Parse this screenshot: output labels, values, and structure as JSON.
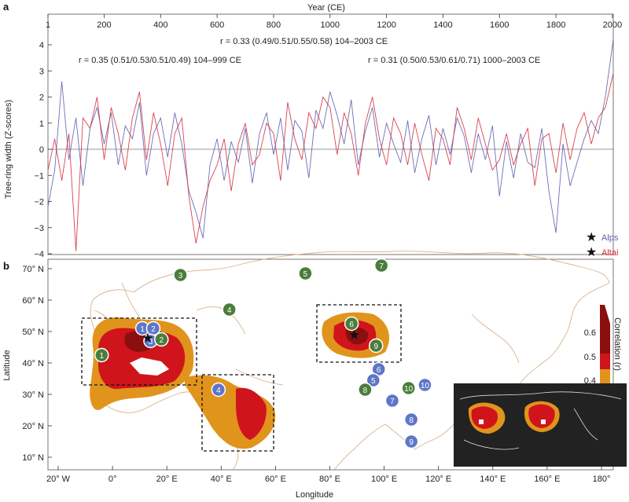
{
  "panel_a": {
    "label": "a",
    "x_axis_title": "Year (CE)",
    "y_axis_title": "Tree-ring width (Z-scores)",
    "correlation_notes": [
      "r = 0.33 (0.49/0.51/0.55/0.58) 104–2003 CE",
      "r = 0.35 (0.51/0.53/0.51/0.49) 104–999 CE",
      "r = 0.31 (0.50/0.53/0.61/0.71) 1000–2003 CE"
    ],
    "legend": [
      {
        "label": "Alps",
        "color": "#5b5fb0"
      },
      {
        "label": "Altai",
        "color": "#d62e3c"
      }
    ]
  },
  "panel_b": {
    "label": "b",
    "x_axis_title": "Longitude",
    "y_axis_title": "Latitude",
    "colorbar_title": "Correlation (r)",
    "colorbar_ticks": [
      "0.6",
      "0.5",
      "0.4"
    ],
    "colorbar_colors": [
      "#8a0f0f",
      "#d0141c",
      "#e0941c"
    ],
    "site_colors": {
      "green": "#4a7d3c",
      "blue": "#5e76c8"
    },
    "sites": [
      {
        "n": "1",
        "color": "blue",
        "lon": 11,
        "lat": 51
      },
      {
        "n": "2",
        "color": "blue",
        "lon": 15,
        "lat": 51
      },
      {
        "n": "3",
        "color": "blue",
        "lon": 14,
        "lat": 47
      },
      {
        "n": "2",
        "color": "green",
        "lon": 18,
        "lat": 47.5
      },
      {
        "n": "1",
        "color": "green",
        "lon": -4,
        "lat": 42.5
      },
      {
        "n": "3",
        "color": "green",
        "lon": 25,
        "lat": 68
      },
      {
        "n": "4",
        "color": "green",
        "lon": 43,
        "lat": 57
      },
      {
        "n": "5",
        "color": "green",
        "lon": 71,
        "lat": 68.5
      },
      {
        "n": "7",
        "color": "green",
        "lon": 99,
        "lat": 71
      },
      {
        "n": "6",
        "color": "green",
        "lon": 88,
        "lat": 52.5
      },
      {
        "n": "9",
        "color": "green",
        "lon": 97,
        "lat": 45.5
      },
      {
        "n": "6",
        "color": "blue",
        "lon": 98,
        "lat": 38
      },
      {
        "n": "5",
        "color": "blue",
        "lon": 96,
        "lat": 34.5
      },
      {
        "n": "7",
        "color": "blue",
        "lon": 103,
        "lat": 28
      },
      {
        "n": "8",
        "color": "green",
        "lon": 93,
        "lat": 31.5
      },
      {
        "n": "10",
        "color": "green",
        "lon": 109,
        "lat": 32
      },
      {
        "n": "10",
        "color": "blue",
        "lon": 115,
        "lat": 33
      },
      {
        "n": "4",
        "color": "blue",
        "lon": 39,
        "lat": 31.5
      },
      {
        "n": "8",
        "color": "blue",
        "lon": 110,
        "lat": 22
      },
      {
        "n": "9",
        "color": "blue",
        "lon": 110,
        "lat": 15
      }
    ],
    "stars": [
      {
        "name": "Alps",
        "lon": 13,
        "lat": 48
      },
      {
        "name": "Altai",
        "lon": 89,
        "lat": 49
      }
    ]
  },
  "chart_data": [
    {
      "type": "line",
      "title": "",
      "xlabel": "Year (CE)",
      "ylabel": "Tree-ring width (Z-scores)",
      "xlim": [
        1,
        2003
      ],
      "ylim": [
        -4,
        4
      ],
      "x_ticks": [
        "1",
        "200",
        "400",
        "600",
        "800",
        "1000",
        "1200",
        "1400",
        "1600",
        "1800",
        "2000"
      ],
      "y_ticks": [
        "4",
        "3",
        "2",
        "1",
        "0",
        "−1",
        "−2",
        "−3",
        "−4"
      ],
      "series": [
        {
          "name": "Alps",
          "color": "#5b5fb0",
          "x": [
            1,
            25,
            50,
            75,
            100,
            125,
            150,
            175,
            200,
            225,
            250,
            275,
            300,
            325,
            350,
            375,
            400,
            425,
            450,
            475,
            500,
            525,
            550,
            575,
            600,
            625,
            650,
            675,
            700,
            725,
            750,
            775,
            800,
            825,
            850,
            875,
            900,
            925,
            950,
            975,
            1000,
            1025,
            1050,
            1075,
            1100,
            1125,
            1150,
            1175,
            1200,
            1225,
            1250,
            1275,
            1300,
            1325,
            1350,
            1375,
            1400,
            1425,
            1450,
            1475,
            1500,
            1525,
            1550,
            1575,
            1600,
            1625,
            1650,
            1675,
            1700,
            1725,
            1750,
            1775,
            1800,
            1825,
            1850,
            1875,
            1900,
            1925,
            1950,
            1975,
            2003
          ],
          "y": [
            -2.2,
            -0.8,
            2.6,
            -0.4,
            1.2,
            -1.4,
            0.8,
            1.6,
            0.2,
            1.4,
            -0.6,
            0.9,
            0.4,
            1.8,
            -1.0,
            0.6,
            1.2,
            -0.3,
            1.4,
            0.2,
            -1.6,
            -2.4,
            -3.4,
            -0.6,
            0.4,
            -1.2,
            0.3,
            -0.5,
            0.8,
            -1.3,
            0.6,
            1.4,
            -0.2,
            1.2,
            -0.8,
            1.1,
            0.7,
            -1.1,
            1.5,
            0.8,
            2.2,
            1.3,
            0.2,
            1.9,
            -0.6,
            0.7,
            1.6,
            -0.3,
            1.0,
            0.2,
            -0.5,
            1.1,
            -0.9,
            0.4,
            1.3,
            -0.6,
            0.8,
            -0.2,
            1.2,
            0.5,
            -0.9,
            0.6,
            -0.4,
            0.9,
            -1.8,
            0.3,
            -1.1,
            0.6,
            -0.5,
            -0.7,
            0.8,
            -1.6,
            -3.2,
            0.2,
            -1.4,
            -0.5,
            0.4,
            1.1,
            0.6,
            2.0,
            4.2
          ]
        },
        {
          "name": "Altai",
          "color": "#d62e3c",
          "x": [
            1,
            25,
            50,
            75,
            100,
            125,
            150,
            175,
            200,
            225,
            250,
            275,
            300,
            325,
            350,
            375,
            400,
            425,
            450,
            475,
            500,
            525,
            550,
            575,
            600,
            625,
            650,
            675,
            700,
            725,
            750,
            775,
            800,
            825,
            850,
            875,
            900,
            925,
            950,
            975,
            1000,
            1025,
            1050,
            1075,
            1100,
            1125,
            1150,
            1175,
            1200,
            1225,
            1250,
            1275,
            1300,
            1325,
            1350,
            1375,
            1400,
            1425,
            1450,
            1475,
            1500,
            1525,
            1550,
            1575,
            1600,
            1625,
            1650,
            1675,
            1700,
            1725,
            1750,
            1775,
            1800,
            1825,
            1850,
            1875,
            1900,
            1925,
            1950,
            1975,
            2003
          ],
          "y": [
            -0.8,
            0.4,
            -1.2,
            0.6,
            -3.9,
            1.2,
            0.8,
            2.0,
            -0.4,
            1.6,
            0.6,
            -0.8,
            1.2,
            2.2,
            -0.4,
            1.4,
            0.2,
            -1.4,
            0.6,
            1.2,
            -1.8,
            -3.6,
            -2.2,
            -1.2,
            -0.6,
            0.4,
            -1.6,
            0.2,
            1.0,
            -0.6,
            -0.2,
            1.0,
            0.6,
            -1.2,
            1.8,
            0.4,
            -0.4,
            1.4,
            0.8,
            2.0,
            1.6,
            -0.2,
            1.4,
            0.6,
            -1.0,
            1.0,
            2.0,
            0.4,
            -0.6,
            1.2,
            0.6,
            -0.6,
            1.0,
            -0.2,
            -1.2,
            0.8,
            0.4,
            -0.6,
            1.6,
            0.8,
            -0.4,
            1.2,
            0.2,
            -0.8,
            -0.4,
            0.6,
            -0.6,
            0.2,
            0.8,
            -1.4,
            0.4,
            0.6,
            -0.9,
            1.0,
            -0.4,
            0.8,
            1.4,
            0.2,
            1.2,
            1.6,
            2.9
          ]
        }
      ],
      "grid": false,
      "legend_position": "bottom-right"
    },
    {
      "type": "heatmap",
      "title": "",
      "xlabel": "Longitude",
      "ylabel": "Latitude",
      "xlim": [
        -20,
        180
      ],
      "ylim": [
        10,
        75
      ],
      "x_ticks": [
        "20° W",
        "0°",
        "20° E",
        "40° E",
        "60° E",
        "80° E",
        "100° E",
        "120° E",
        "140° E",
        "160° E",
        "180°"
      ],
      "y_ticks": [
        "70° N",
        "60° N",
        "50° N",
        "40° N",
        "30° N",
        "20° N",
        "10° N"
      ],
      "colorbar_range": [
        0.4,
        0.65
      ]
    }
  ]
}
